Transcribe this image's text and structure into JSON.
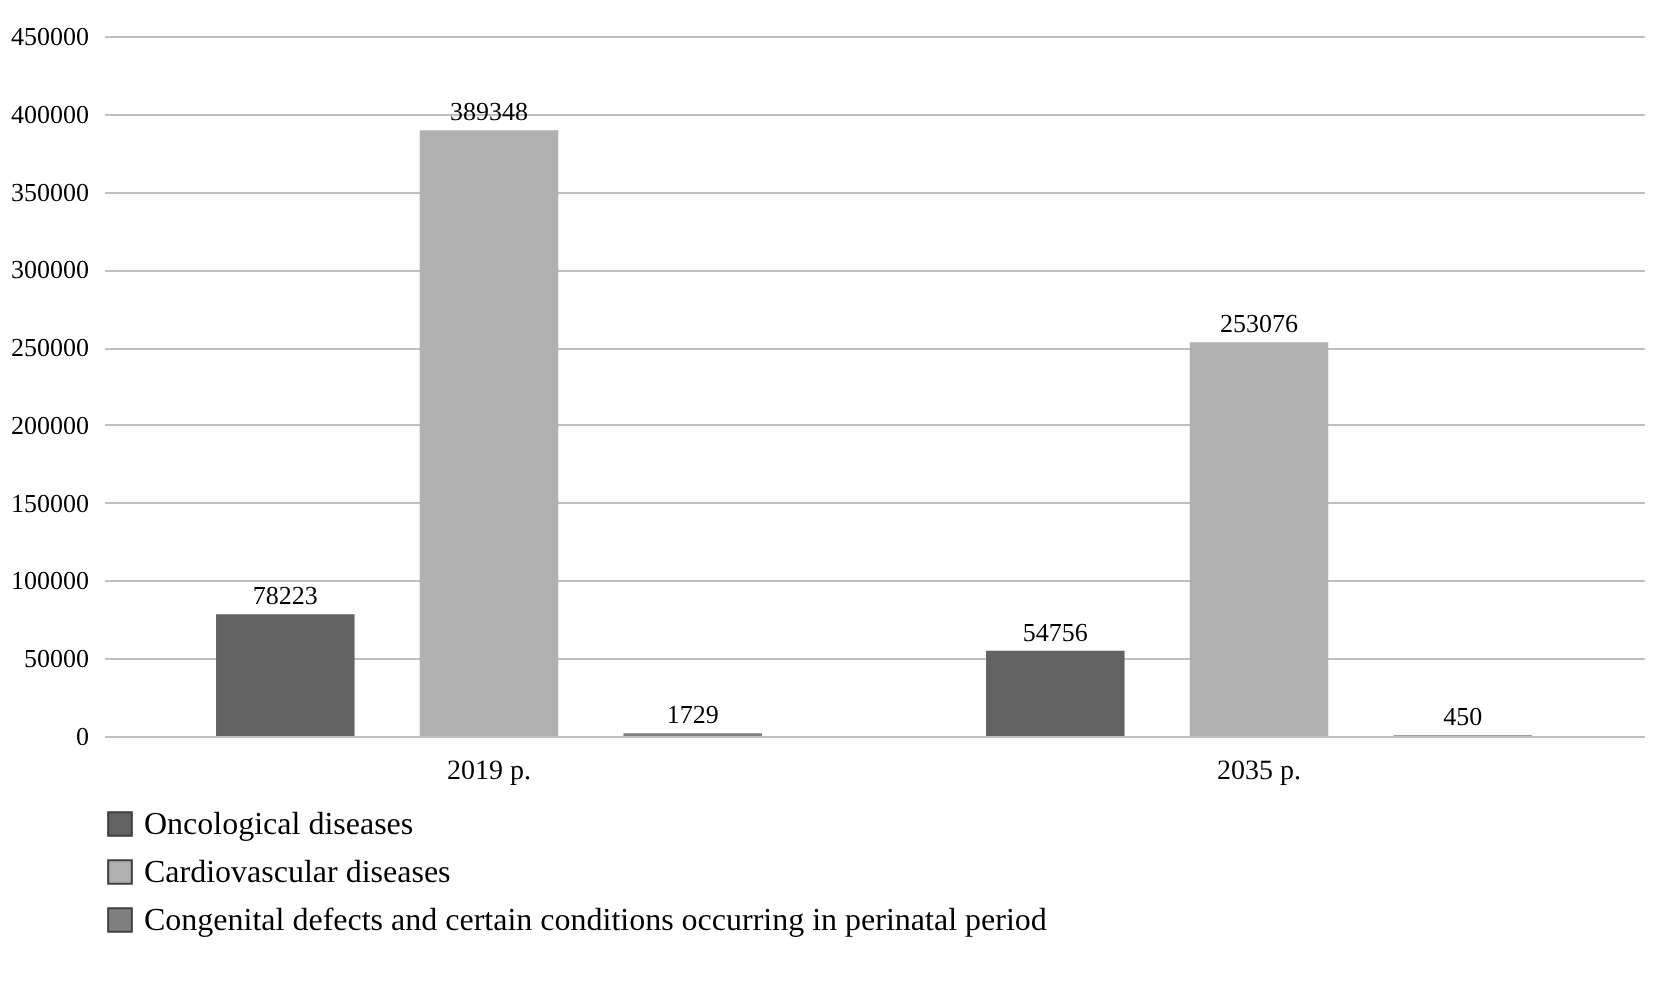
{
  "chart_data": {
    "type": "bar",
    "categories": [
      "2019 p.",
      "2035 p."
    ],
    "series": [
      {
        "name": "Oncological diseases",
        "color": "#626262",
        "values": [
          78223,
          54756
        ]
      },
      {
        "name": "Cardiovascular diseases",
        "color": "#b0b0b0",
        "values": [
          389348,
          253076
        ]
      },
      {
        "name": "Congenital defects and certain conditions occurring in perinatal period",
        "color": "#7f7f7f",
        "values": [
          1729,
          450
        ]
      }
    ],
    "ylim": [
      0,
      450000
    ],
    "yticks": [
      0,
      50000,
      100000,
      150000,
      200000,
      250000,
      300000,
      350000,
      400000,
      450000
    ],
    "grid": "y",
    "legend": "bottom left",
    "data_labels": true
  }
}
